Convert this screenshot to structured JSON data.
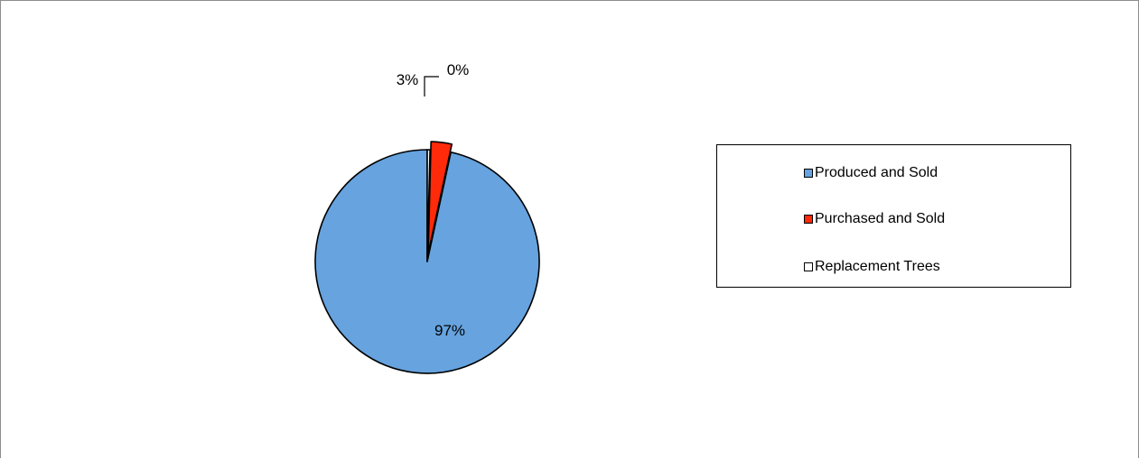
{
  "chart_data": {
    "type": "pie",
    "title": "",
    "categories": [
      "Produced and Sold",
      "Purchased and Sold",
      "Replacement Trees"
    ],
    "values": [
      97,
      3,
      0.4
    ],
    "labels": [
      "97%",
      "3%",
      "0%"
    ],
    "colors": [
      "#66A3DF",
      "#FF2A0A",
      "#FFFFFF"
    ],
    "exploded": [
      false,
      true,
      true
    ],
    "legend_position": "right"
  }
}
